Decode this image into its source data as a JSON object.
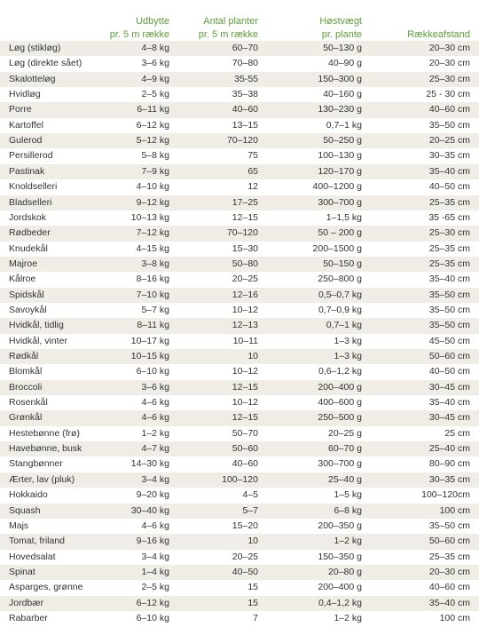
{
  "table": {
    "header": [
      [
        "Udbytte",
        "pr. 5 m række"
      ],
      [
        "Antal planter",
        "pr. 5 m række"
      ],
      [
        "Høstvægt",
        "pr. plante"
      ],
      [
        "Rækkeafstand"
      ]
    ],
    "rows": [
      [
        "Løg (stikløg)",
        "4–8 kg",
        "60–70",
        "50–130 g",
        "20–30 cm"
      ],
      [
        "Løg (direkte sået)",
        "3–6 kg",
        "70–80",
        "40–90 g",
        "20–30 cm"
      ],
      [
        "Skalotteløg",
        "4–9 kg",
        "35-55",
        "150–300 g",
        "25–30 cm"
      ],
      [
        "Hvidløg",
        "2–5 kg",
        "35–38",
        "40–160 g",
        "25 - 30 cm"
      ],
      [
        "Porre",
        "6–11 kg",
        "40–60",
        "130–230 g",
        "40–60 cm"
      ],
      [
        "Kartoffel",
        "6–12 kg",
        "13–15",
        "0,7–1 kg",
        "35–50 cm"
      ],
      [
        "Gulerod",
        "5–12 kg",
        "70–120",
        "50–250 g",
        "20–25 cm"
      ],
      [
        "Persillerod",
        "5–8 kg",
        "75",
        "100–130 g",
        "30–35 cm"
      ],
      [
        "Pastinak",
        "7–9 kg",
        "65",
        "120–170 g",
        "35–40 cm"
      ],
      [
        "Knoldselleri",
        "4–10 kg",
        "12",
        "400–1200 g",
        "40–50 cm"
      ],
      [
        "Bladselleri",
        "9–12 kg",
        "17–25",
        "300–700 g",
        "25–35 cm"
      ],
      [
        "Jordskok",
        "10–13 kg",
        "12–15",
        "1–1,5 kg",
        "35 -65 cm"
      ],
      [
        "Rødbeder",
        "7–12 kg",
        "70–120",
        "50 – 200 g",
        "25–30 cm"
      ],
      [
        "Knudekål",
        "4–15 kg",
        "15–30",
        "200–1500 g",
        "25–35 cm"
      ],
      [
        "Majroe",
        "3–8 kg",
        "50–80",
        "50–150 g",
        "25–35 cm"
      ],
      [
        "Kålroe",
        "8–16 kg",
        "20–25",
        "250–800 g",
        "35–40 cm"
      ],
      [
        "Spidskål",
        "7–10 kg",
        "12–16",
        "0,5–0,7 kg",
        "35–50 cm"
      ],
      [
        "Savoykål",
        "5–7 kg",
        "10–12",
        "0,7–0,9 kg",
        "35–50 cm"
      ],
      [
        "Hvidkål, tidlig",
        "8–11 kg",
        "12–13",
        "0,7–1 kg",
        "35–50 cm"
      ],
      [
        "Hvidkål, vinter",
        "10–17 kg",
        "10–11",
        "1–3 kg",
        "45–50 cm"
      ],
      [
        "Rødkål",
        "10–15 kg",
        "10",
        "1–3 kg",
        "50–60 cm"
      ],
      [
        "Blomkål",
        "6–10 kg",
        "10–12",
        "0,6–1,2 kg",
        "40–50 cm"
      ],
      [
        "Broccoli",
        "3–6 kg",
        "12–15",
        "200–400 g",
        "30–45 cm"
      ],
      [
        "Rosenkål",
        "4–6 kg",
        "10–12",
        "400–600 g",
        "35–40 cm"
      ],
      [
        "Grønkål",
        "4–6 kg",
        "12–15",
        "250–500 g",
        "30–45 cm"
      ],
      [
        "Hestebønne (frø)",
        "1–2 kg",
        "50–70",
        "20–25 g",
        "25 cm"
      ],
      [
        "Havebønne, busk",
        "4–7 kg",
        "50–60",
        "60–70 g",
        "25–40 cm"
      ],
      [
        "Stangbønner",
        "14–30 kg",
        "40–60",
        "300–700 g",
        "80–90 cm"
      ],
      [
        "Ærter, lav (pluk)",
        "3–4 kg",
        "100–120",
        "25–40 g",
        "30–35 cm"
      ],
      [
        "Hokkaido",
        "9–20 kg",
        "4–5",
        "1–5 kg",
        "100–120cm"
      ],
      [
        "Squash",
        "30–40 kg",
        "5–7",
        "6–8 kg",
        "100 cm"
      ],
      [
        "Majs",
        "4–6 kg",
        "15–20",
        "200–350 g",
        "35–50 cm"
      ],
      [
        "Tomat, friland",
        "9–16 kg",
        "10",
        "1–2 kg",
        "50–60 cm"
      ],
      [
        "Hovedsalat",
        "3–4 kg",
        "20–25",
        "150–350 g",
        "25–35 cm"
      ],
      [
        "Spinat",
        "1–4 kg",
        "40–50",
        "20–80 g",
        "20–30 cm"
      ],
      [
        "Asparges, grønne",
        "2–5 kg",
        "15",
        "200–400 g",
        "40–60 cm"
      ],
      [
        "Jordbær",
        "6–12 kg",
        "15",
        "0,4–1,2 kg",
        "35–40 cm"
      ],
      [
        "Rabarber",
        "6–10 kg",
        "7",
        "1–2 kg",
        "100 cm"
      ]
    ]
  }
}
